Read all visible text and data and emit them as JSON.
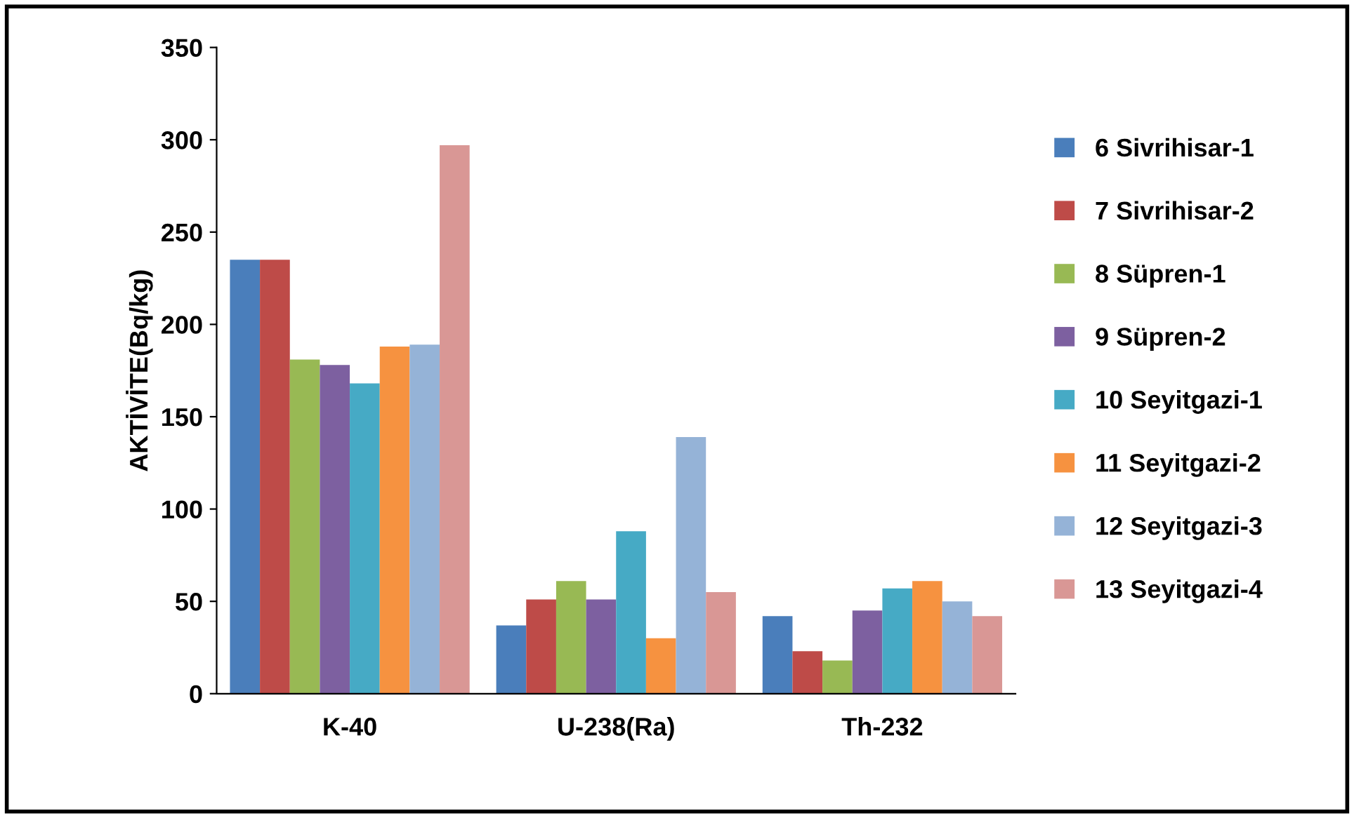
{
  "chart_data": {
    "type": "bar",
    "ylabel": "AKTİVİTE(Bq/kg)",
    "categories": [
      "K-40",
      "U-238(Ra)",
      "Th-232"
    ],
    "series": [
      {
        "name": "6 Sivrihisar-1",
        "color": "#4a7ebb",
        "values": [
          235,
          37,
          42
        ]
      },
      {
        "name": "7 Sivrihisar-2",
        "color": "#be4b48",
        "values": [
          235,
          51,
          23
        ]
      },
      {
        "name": "8 Süpren-1",
        "color": "#98b954",
        "values": [
          181,
          61,
          18
        ]
      },
      {
        "name": "9 Süpren-2",
        "color": "#7d60a0",
        "values": [
          178,
          51,
          45
        ]
      },
      {
        "name": "10 Seyitgazi-1",
        "color": "#46aac5",
        "values": [
          168,
          88,
          57
        ]
      },
      {
        "name": "11 Seyitgazi-2",
        "color": "#f69240",
        "values": [
          188,
          30,
          61
        ]
      },
      {
        "name": "12 Seyitgazi-3",
        "color": "#95b3d7",
        "values": [
          189,
          139,
          50
        ]
      },
      {
        "name": "13 Seyitgazi-4",
        "color": "#d99795",
        "values": [
          297,
          55,
          42
        ]
      }
    ],
    "ylim": [
      0,
      350
    ],
    "yticks": [
      0,
      50,
      100,
      150,
      200,
      250,
      300,
      350
    ],
    "grid": false,
    "legend": "right"
  }
}
